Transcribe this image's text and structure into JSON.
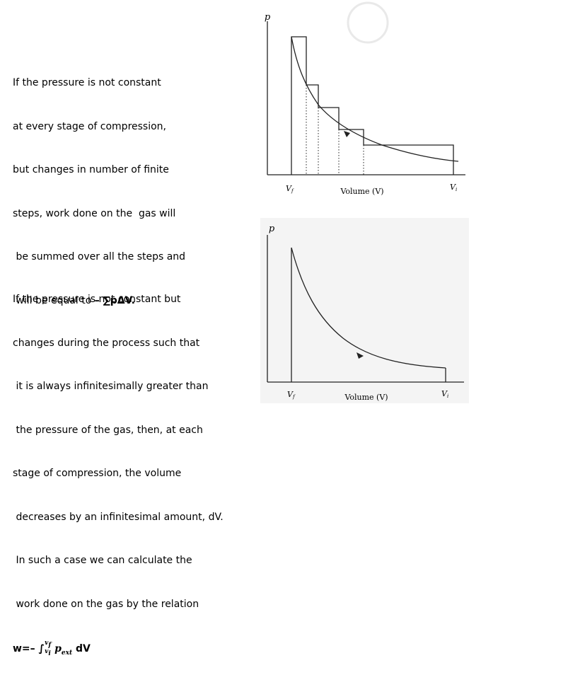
{
  "text1": {
    "lines": [
      "If the pressure is not constant",
      "at every stage of compression,",
      "but changes in number of finite",
      "steps, work done on the  gas will",
      " be summed over all the steps and",
      " will be equal to "
    ],
    "expression": "– ∑pΔV."
  },
  "text2": {
    "lines": [
      "If the pressure is not constant but",
      "changes during the process such that",
      " it is always infinitesimally greater than",
      " the pressure of the gas, then, at each",
      "stage of compression, the volume",
      " decreases by an infinitesimal amount, dV.",
      " In such a case we can calculate the",
      " work done on the gas by the relation"
    ],
    "formula": {
      "prefix": "w=– ",
      "integral": "∫",
      "upper": "v",
      "upper_sub": "f",
      "lower": "v",
      "lower_sub": "i",
      "integrand": "p",
      "integrand_sub": "ext",
      "suffix": " dV"
    }
  },
  "diagram1": {
    "ylabel": "p",
    "xlabel": "Volume (V)",
    "vf_label": "V",
    "vf_sub": "f",
    "vi_label": "V",
    "vi_sub": "i"
  },
  "diagram2": {
    "ylabel": "p",
    "xlabel": "Volume (V)",
    "vf_label": "V",
    "vf_sub": "f",
    "vi_label": "V",
    "vi_sub": "i"
  },
  "colors": {
    "line": "#222222",
    "panel": "#f4f4f4",
    "watermark": "#e9e9e9"
  }
}
